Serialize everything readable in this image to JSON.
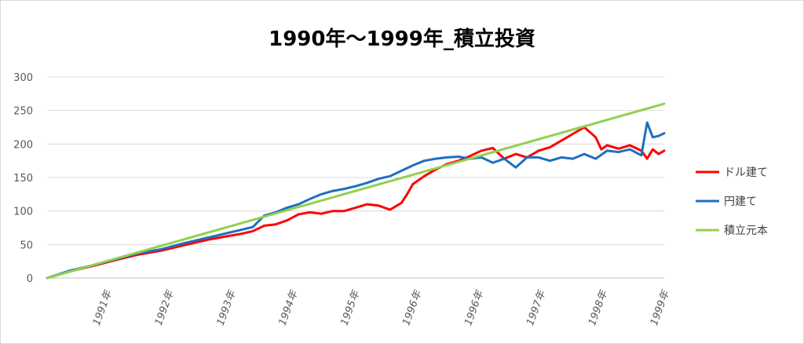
{
  "chart_data": {
    "type": "line",
    "title": "1990年～1999年_積立投資",
    "xlabel": "",
    "ylabel": "",
    "ylim": [
      0,
      300
    ],
    "yticks": [
      0,
      50,
      100,
      150,
      200,
      250,
      300
    ],
    "grid": true,
    "legend_position": "right",
    "x_tick_labels": [
      "1991年",
      "1992年",
      "1993年",
      "1994年",
      "1995年",
      "1996年",
      "1996年",
      "1997年",
      "1998年",
      "1999年"
    ],
    "x_range": [
      0,
      108
    ],
    "series": [
      {
        "name": "ドル建て",
        "color": "#ff0000",
        "x": [
          0,
          4,
          8,
          12,
          16,
          20,
          24,
          28,
          32,
          34,
          36,
          38,
          40,
          42,
          44,
          46,
          48,
          50,
          52,
          54,
          56,
          58,
          60,
          62,
          63,
          64,
          66,
          68,
          70,
          72,
          74,
          76,
          78,
          80,
          82,
          84,
          86,
          88,
          90,
          92,
          94,
          96,
          97,
          98,
          100,
          102,
          104,
          105,
          106,
          107,
          108
        ],
        "y": [
          0,
          10,
          18,
          27,
          35,
          41,
          49,
          57,
          63,
          66,
          70,
          78,
          80,
          86,
          95,
          98,
          96,
          100,
          100,
          105,
          110,
          108,
          102,
          112,
          125,
          140,
          152,
          162,
          170,
          175,
          182,
          190,
          194,
          178,
          185,
          180,
          190,
          195,
          205,
          215,
          225,
          210,
          192,
          198,
          193,
          198,
          190,
          178,
          192,
          185,
          190
        ]
      },
      {
        "name": "円建て",
        "color": "#1f6fc0",
        "x": [
          0,
          4,
          8,
          12,
          16,
          20,
          24,
          28,
          32,
          34,
          36,
          38,
          40,
          42,
          44,
          46,
          48,
          50,
          52,
          54,
          56,
          58,
          60,
          62,
          64,
          66,
          68,
          70,
          72,
          74,
          76,
          78,
          80,
          82,
          84,
          86,
          88,
          90,
          92,
          94,
          96,
          98,
          100,
          102,
          104,
          105,
          106,
          107,
          108
        ],
        "y": [
          0,
          11,
          19,
          28,
          37,
          43,
          52,
          60,
          68,
          72,
          76,
          93,
          98,
          105,
          110,
          118,
          125,
          130,
          133,
          137,
          142,
          148,
          152,
          160,
          168,
          175,
          178,
          180,
          181,
          178,
          180,
          172,
          178,
          165,
          180,
          180,
          175,
          180,
          178,
          185,
          178,
          190,
          188,
          192,
          183,
          232,
          210,
          212,
          216
        ]
      },
      {
        "name": "積立元本",
        "color": "#92d050",
        "x": [
          0,
          108
        ],
        "y": [
          0,
          260
        ]
      }
    ]
  }
}
